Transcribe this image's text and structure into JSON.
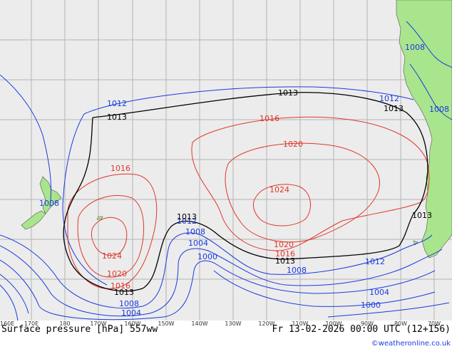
{
  "map": {
    "caption_left": "Surface pressure [hPa] 557ww",
    "caption_right": "Fr 13-02-2026 00:00 UTC (12+156)",
    "credit": "©weatheronline.co.uk",
    "lon_labels": [
      "160E",
      "170E",
      "180",
      "170W",
      "160W",
      "150W",
      "140W",
      "130W",
      "120W",
      "110W",
      "100W",
      "90W",
      "80W",
      "70W"
    ],
    "colors": {
      "low": "#1a3adf",
      "high": "#e0362a",
      "ref": "#000000",
      "land": "#a9e58c",
      "grid": "#b5b5b5",
      "sea": "#ececec"
    },
    "isobar_labels": [
      "1012",
      "1013",
      "1013",
      "1013",
      "1012",
      "1013",
      "1008",
      "1008",
      "1016",
      "1020",
      "1016",
      "1024",
      "1024",
      "1016",
      "1020",
      "1012",
      "1013",
      "1013",
      "1008",
      "1004",
      "1000",
      "1020",
      "1016",
      "1013",
      "1008",
      "1012",
      "1004",
      "1000",
      "1008",
      "1004",
      "1008"
    ]
  }
}
